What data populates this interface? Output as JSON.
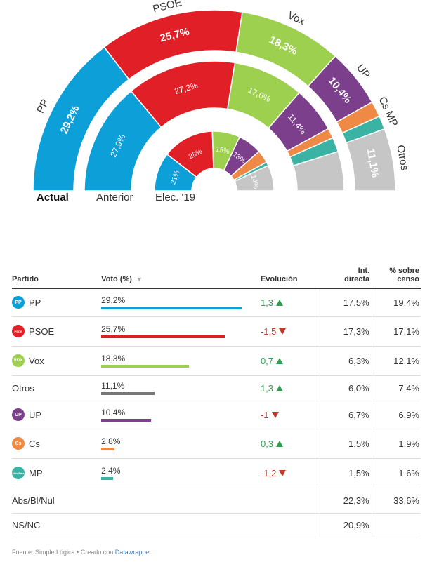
{
  "chart_data": {
    "type": "semicircle-donut",
    "rings": [
      {
        "name": "Actual",
        "segments": [
          {
            "party": "PP",
            "value": 29.2,
            "label": "29,2%",
            "color": "#0d9fd8"
          },
          {
            "party": "PSOE",
            "value": 25.7,
            "label": "25,7%",
            "color": "#e11f26"
          },
          {
            "party": "Vox",
            "value": 18.3,
            "label": "18,3%",
            "color": "#9ed04f"
          },
          {
            "party": "UP",
            "value": 10.4,
            "label": "10,4%",
            "color": "#7b3f8c"
          },
          {
            "party": "Cs",
            "value": 2.8,
            "label": "",
            "color": "#ee8a45"
          },
          {
            "party": "MP",
            "value": 2.4,
            "label": "",
            "color": "#3bb3a4"
          },
          {
            "party": "Otros",
            "value": 11.1,
            "label": "11,1%",
            "color": "#c6c6c6"
          }
        ]
      },
      {
        "name": "Anterior",
        "segments": [
          {
            "party": "PP",
            "value": 27.9,
            "label": "27,9%",
            "color": "#0d9fd8"
          },
          {
            "party": "PSOE",
            "value": 27.2,
            "label": "27,2%",
            "color": "#e11f26"
          },
          {
            "party": "Vox",
            "value": 17.6,
            "label": "17,6%",
            "color": "#9ed04f"
          },
          {
            "party": "UP",
            "value": 11.4,
            "label": "11,4%",
            "color": "#7b3f8c"
          },
          {
            "party": "Cs",
            "value": 2.5,
            "label": "",
            "color": "#ee8a45"
          },
          {
            "party": "MP",
            "value": 3.6,
            "label": "",
            "color": "#3bb3a4"
          },
          {
            "party": "Otros",
            "value": 9.8,
            "label": "",
            "color": "#c6c6c6"
          }
        ]
      },
      {
        "name": "Elec. '19",
        "segments": [
          {
            "party": "PP",
            "value": 21,
            "label": "21%",
            "color": "#0d9fd8"
          },
          {
            "party": "PSOE",
            "value": 28,
            "label": "28%",
            "color": "#e11f26"
          },
          {
            "party": "Vox",
            "value": 15,
            "label": "15%",
            "color": "#9ed04f"
          },
          {
            "party": "UP",
            "value": 13,
            "label": "13%",
            "color": "#7b3f8c"
          },
          {
            "party": "Cs",
            "value": 7,
            "label": "",
            "color": "#ee8a45"
          },
          {
            "party": "MP",
            "value": 2,
            "label": "",
            "color": "#3bb3a4"
          },
          {
            "party": "Otros",
            "value": 14,
            "label": "14%",
            "color": "#c6c6c6"
          }
        ]
      }
    ],
    "outer_labels": [
      "PP",
      "PSOE",
      "Vox",
      "UP",
      "Cs MP",
      "Otros"
    ]
  },
  "table": {
    "headers": {
      "partido": "Partido",
      "voto": "Voto (%)",
      "evolucion": "Evolución",
      "int_line1": "Int.",
      "int_line2": "directa",
      "censo_line1": "% sobre",
      "censo_line2": "censo"
    },
    "voto_max": 29.2,
    "rows": [
      {
        "party": "PP",
        "logo": "PP",
        "voto": "29,2%",
        "voto_value": 29.2,
        "color": "#0d9fd8",
        "evol": "1,3",
        "dir": "up",
        "int": "17,5%",
        "censo": "19,4%"
      },
      {
        "party": "PSOE",
        "logo": "PSOE",
        "voto": "25,7%",
        "voto_value": 25.7,
        "color": "#e11f26",
        "evol": "-1,5",
        "dir": "down",
        "int": "17,3%",
        "censo": "17,1%"
      },
      {
        "party": "Vox",
        "logo": "VOX",
        "voto": "18,3%",
        "voto_value": 18.3,
        "color": "#9ed04f",
        "evol": "0,7",
        "dir": "up",
        "int": "6,3%",
        "censo": "12,1%"
      },
      {
        "party": "Otros",
        "logo": "",
        "voto": "11,1%",
        "voto_value": 11.1,
        "color": "#777777",
        "evol": "1,3",
        "dir": "up",
        "int": "6,0%",
        "censo": "7,4%"
      },
      {
        "party": "UP",
        "logo": "UP",
        "voto": "10,4%",
        "voto_value": 10.4,
        "color": "#7b3f8c",
        "evol": "-1",
        "dir": "down",
        "int": "6,7%",
        "censo": "6,9%"
      },
      {
        "party": "Cs",
        "logo": "Cs",
        "voto": "2,8%",
        "voto_value": 2.8,
        "color": "#ee8a45",
        "evol": "0,3",
        "dir": "up",
        "int": "1,5%",
        "censo": "1,9%"
      },
      {
        "party": "MP",
        "logo": "Más País",
        "voto": "2,4%",
        "voto_value": 2.4,
        "color": "#3bb3a4",
        "evol": "-1,2",
        "dir": "down",
        "int": "1,5%",
        "censo": "1,6%"
      },
      {
        "party": "Abs/Bl/Nul",
        "logo": "",
        "voto": "",
        "voto_value": null,
        "color": "",
        "evol": "",
        "dir": "",
        "int": "22,3%",
        "censo": "33,6%"
      },
      {
        "party": "NS/NC",
        "logo": "",
        "voto": "",
        "voto_value": null,
        "color": "",
        "evol": "",
        "dir": "",
        "int": "20,9%",
        "censo": ""
      }
    ]
  },
  "footer": {
    "prefix": "Fuente: Simple Lógica • Creado con ",
    "link": "Datawrapper"
  },
  "colors": {
    "up": "#2e9e4f",
    "down": "#c0392b"
  }
}
